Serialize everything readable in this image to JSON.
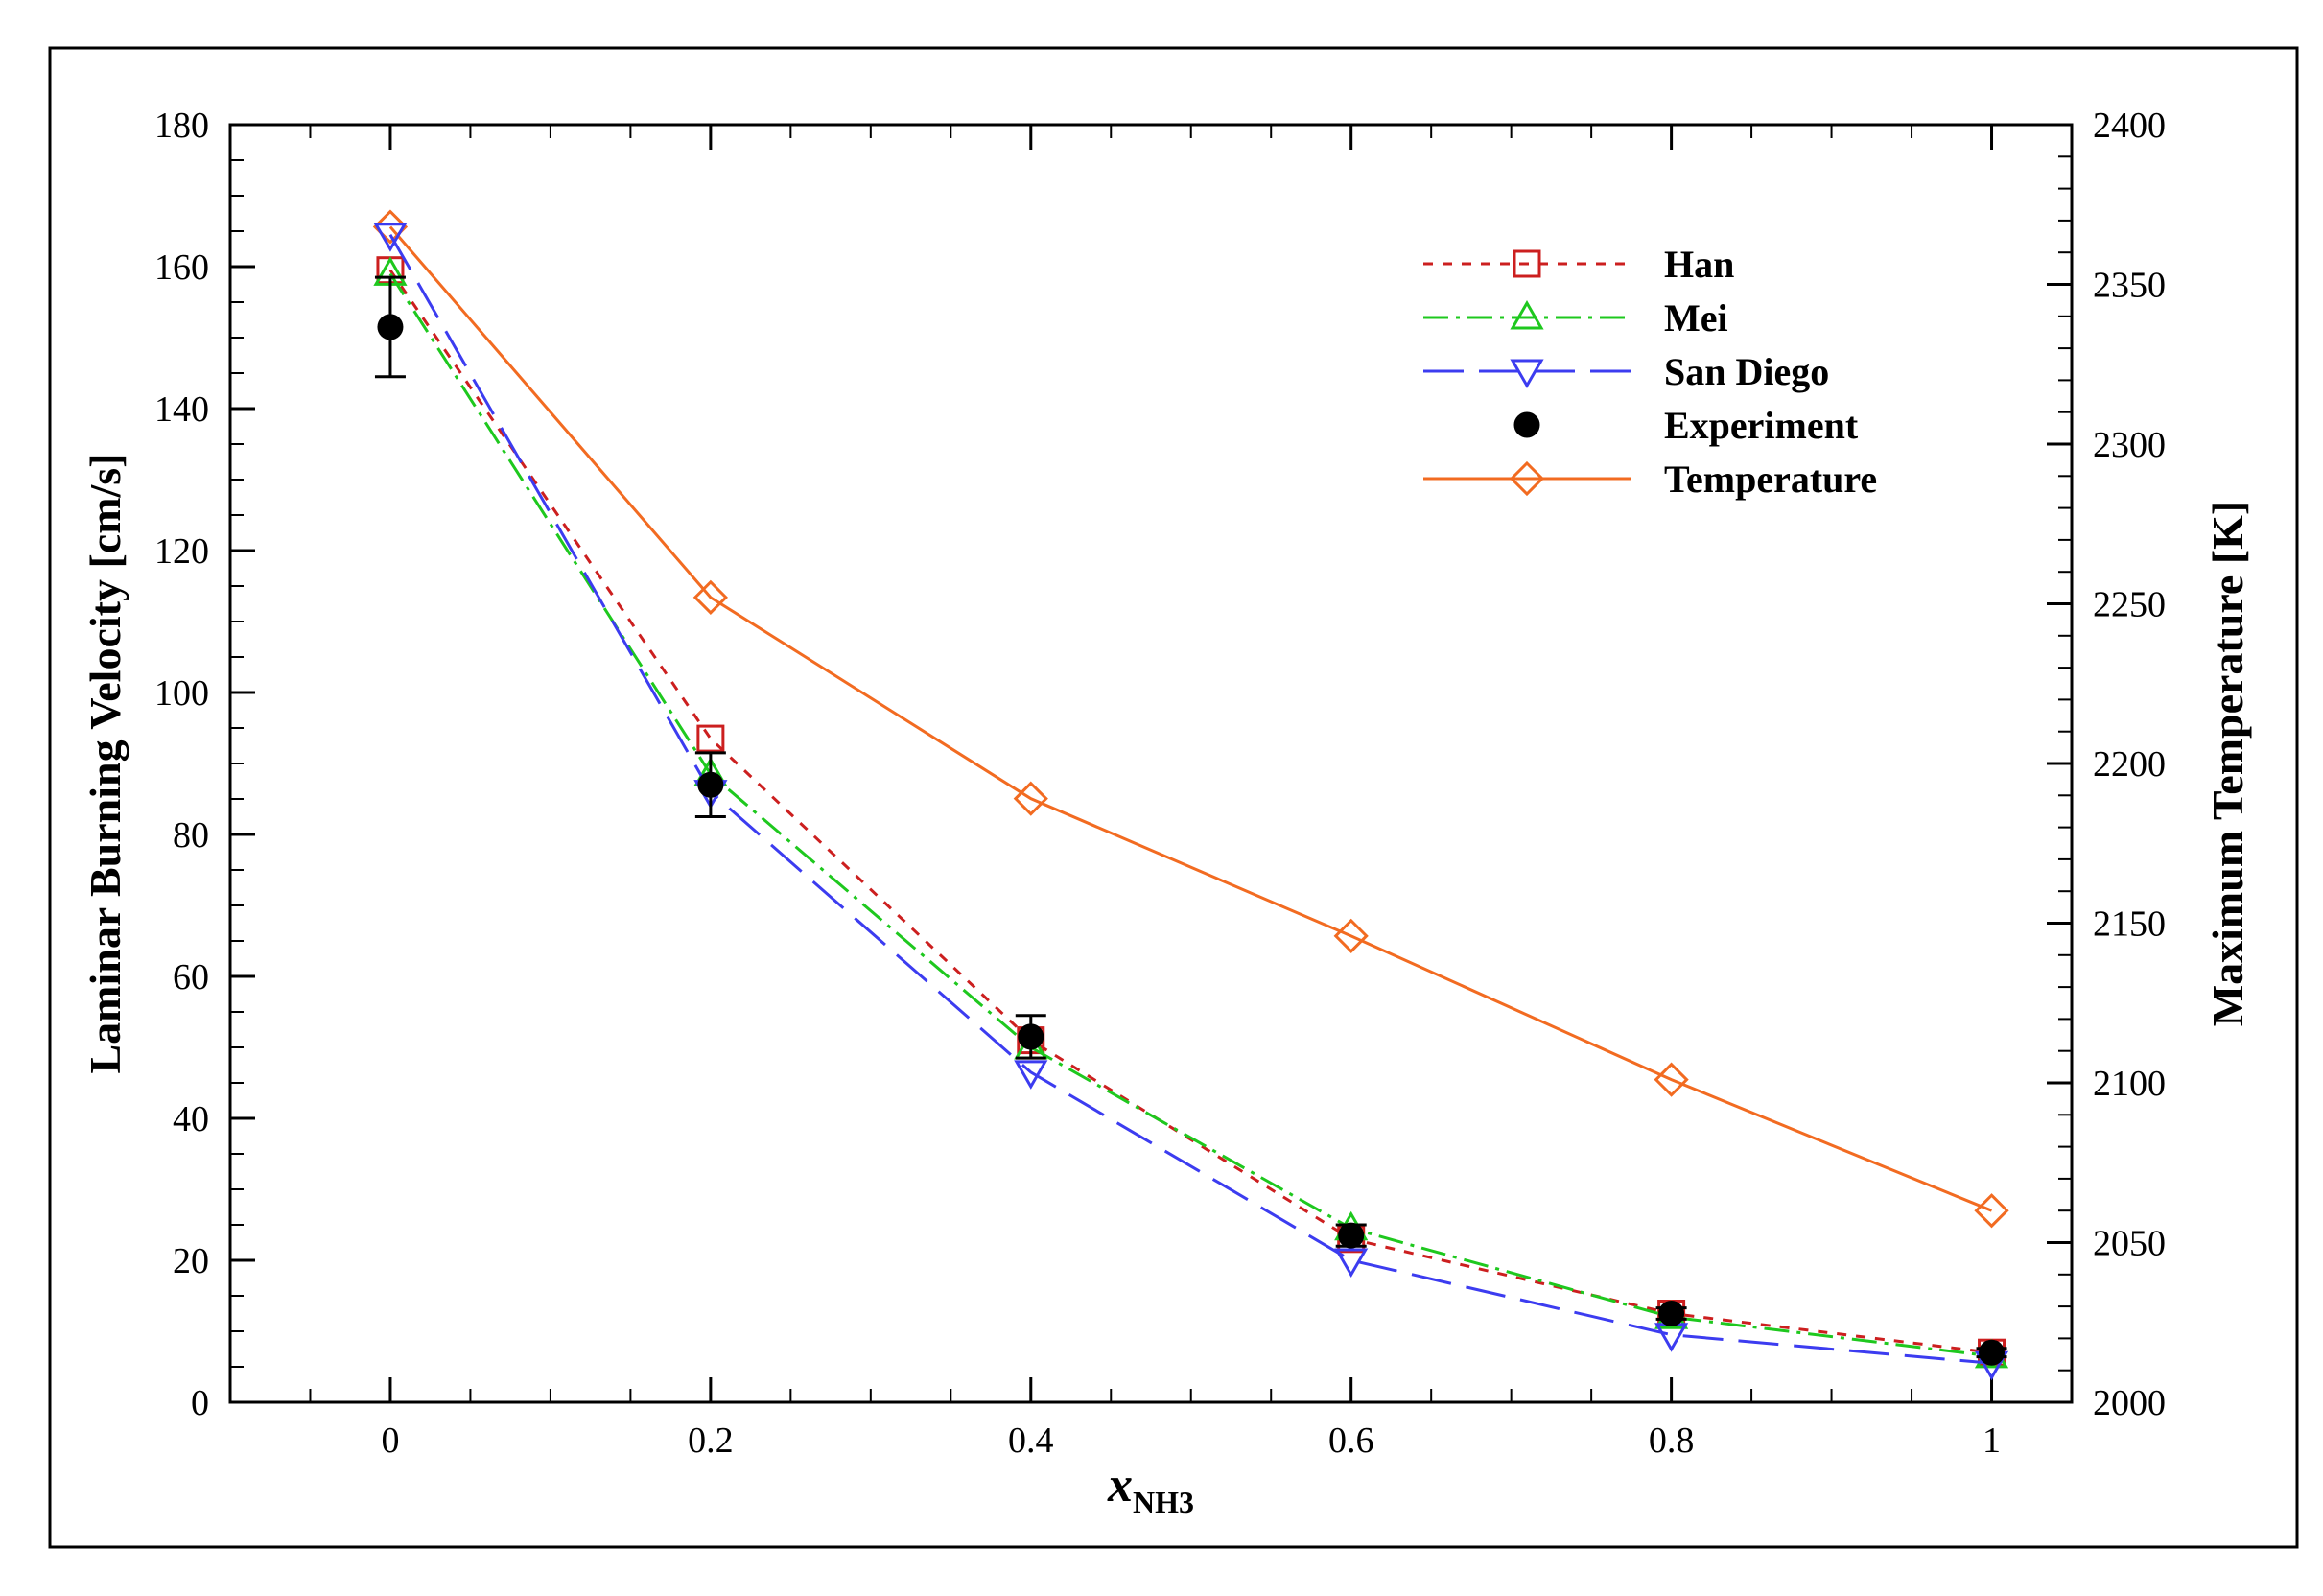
{
  "chart_data": {
    "type": "line",
    "title": "",
    "xlabel": {
      "main": "x",
      "subscript": "NH3"
    },
    "ylabel": "Laminar Burning Velocity [cm/s]",
    "y2label": "Maximum Temperature [K]",
    "xlim": [
      -0.1,
      1.05
    ],
    "ylim": [
      0,
      180
    ],
    "y2lim": [
      2000,
      2400
    ],
    "x_ticks": [
      0,
      0.2,
      0.4,
      0.6,
      0.8,
      1
    ],
    "x_tick_labels": [
      "0",
      "0.2",
      "0.4",
      "0.6",
      "0.8",
      "1"
    ],
    "x_minor_ticks": [
      -0.05,
      0.05,
      0.1,
      0.15,
      0.25,
      0.3,
      0.35,
      0.45,
      0.5,
      0.55,
      0.65,
      0.7,
      0.75,
      0.85,
      0.9,
      0.95
    ],
    "y_ticks": [
      0,
      20,
      40,
      60,
      80,
      100,
      120,
      140,
      160,
      180
    ],
    "y_tick_labels": [
      "0",
      "20",
      "40",
      "60",
      "80",
      "100",
      "120",
      "140",
      "160",
      "180"
    ],
    "y2_ticks": [
      2000,
      2050,
      2100,
      2150,
      2200,
      2250,
      2300,
      2350,
      2400
    ],
    "y2_tick_labels": [
      "2000",
      "2050",
      "2100",
      "2150",
      "2200",
      "2250",
      "2300",
      "2350",
      "2400"
    ],
    "grid": false,
    "legend_position": "top-right",
    "series": [
      {
        "name": "Han",
        "axis": "left",
        "color": "#cc1f1f",
        "marker": "square",
        "dash": "10,10",
        "x": [
          0,
          0.2,
          0.4,
          0.6,
          0.8,
          1
        ],
        "values": [
          159.5,
          93.5,
          51.0,
          23.0,
          12.5,
          7.0
        ]
      },
      {
        "name": "Mei",
        "axis": "left",
        "color": "#1ec81e",
        "marker": "triangle-up",
        "dash": "26,8,4,8",
        "x": [
          0,
          0.2,
          0.4,
          0.6,
          0.8,
          1
        ],
        "values": [
          159.0,
          88.5,
          50.0,
          24.5,
          12.0,
          6.5
        ]
      },
      {
        "name": "San Diego",
        "axis": "left",
        "color": "#3c3cf0",
        "marker": "triangle-down",
        "dash": "42,16",
        "x": [
          0,
          0.2,
          0.4,
          0.6,
          0.8,
          1
        ],
        "values": [
          164.5,
          86.0,
          46.5,
          20.0,
          9.5,
          5.5
        ]
      },
      {
        "name": "Experiment",
        "axis": "left",
        "color": "#000000",
        "marker": "circle-filled",
        "dash": "none",
        "x": [
          0,
          0.2,
          0.4,
          0.6,
          0.8,
          1
        ],
        "values": [
          151.5,
          87.0,
          51.5,
          23.5,
          12.5,
          7.0
        ],
        "error": [
          7.0,
          4.5,
          3.0,
          1.5,
          0.8,
          0.6
        ]
      },
      {
        "name": "Temperature",
        "axis": "right",
        "color": "#f26b21",
        "marker": "diamond",
        "dash": "solid",
        "x": [
          0,
          0.2,
          0.4,
          0.6,
          0.8,
          1
        ],
        "values": [
          2368,
          2252,
          2189,
          2146,
          2101,
          2060
        ]
      }
    ]
  }
}
